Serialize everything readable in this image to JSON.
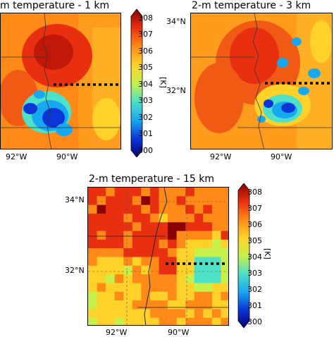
{
  "panels": {
    "p1": {
      "title": "m temperature - 1 km",
      "x_ticks": [
        "92°W",
        "90°W"
      ]
    },
    "p2": {
      "title": "2-m temperature - 3 km",
      "x_ticks": [
        "92°W",
        "90°W"
      ],
      "y_ticks": [
        "34°N",
        "32°N"
      ]
    },
    "p3": {
      "title": "2-m temperature - 15 km",
      "x_ticks": [
        "92°W",
        "90°W"
      ],
      "y_ticks": [
        "34°N",
        "32°N"
      ]
    }
  },
  "colorbar": {
    "ticks": [
      "308",
      "307",
      "306",
      "305",
      "304",
      "303",
      "302",
      "301",
      "300"
    ],
    "unit": "[K]",
    "min": 300,
    "max": 308,
    "colors": [
      "#08006e",
      "#0a36d8",
      "#18a8f0",
      "#4fe0c8",
      "#c8f04a",
      "#ffd22a",
      "#ff8a18",
      "#e83010",
      "#8a0000"
    ]
  }
}
